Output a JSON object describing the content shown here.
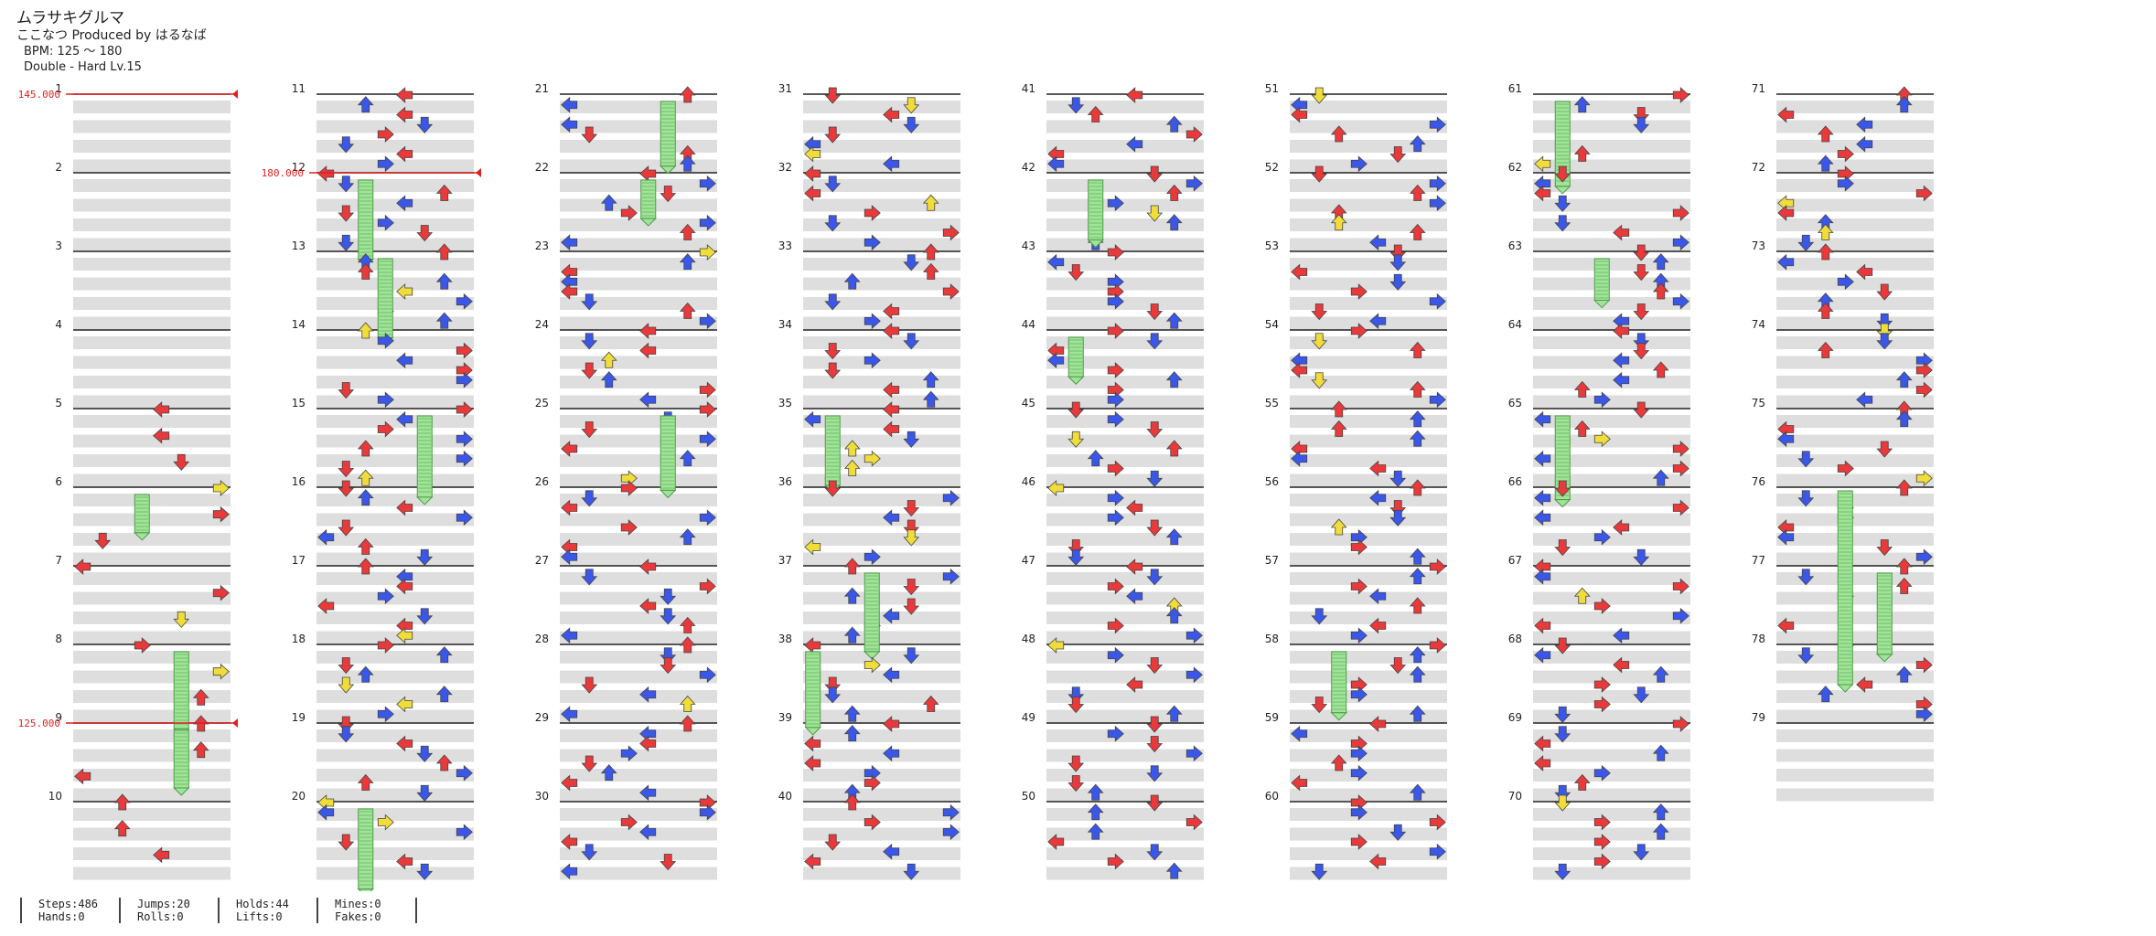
{
  "header": {
    "title": "ムラサキグルマ",
    "subtitle": "ここなつ Produced by はるなば",
    "bpm": "BPM: 125 ～ 180",
    "difficulty": "Double - Hard  Lv.15"
  },
  "measure_numbers": [
    "1",
    "2",
    "3",
    "4",
    "5",
    "6",
    "7",
    "8",
    "9",
    "10",
    "11",
    "12",
    "13",
    "14",
    "15",
    "16",
    "17",
    "18",
    "19",
    "20",
    "21",
    "22",
    "23",
    "24",
    "25",
    "26",
    "27",
    "28",
    "29",
    "30",
    "31",
    "32",
    "33",
    "34",
    "35",
    "36",
    "37",
    "38",
    "39",
    "40",
    "41",
    "42",
    "43",
    "44",
    "45",
    "46",
    "47",
    "48",
    "49",
    "50",
    "51",
    "52",
    "53",
    "54",
    "55",
    "56",
    "57",
    "58",
    "59",
    "60",
    "61",
    "62",
    "63",
    "64",
    "65",
    "66",
    "67",
    "68",
    "69",
    "70",
    "71",
    "72",
    "73",
    "74",
    "75",
    "76",
    "77",
    "78",
    "79"
  ],
  "bpm_changes": [
    {
      "measure": 1,
      "label": "145.000"
    },
    {
      "measure": 12,
      "label": "180.000"
    },
    {
      "measure": 9,
      "label": "125.000"
    }
  ],
  "stats": [
    {
      "top": "Steps:486",
      "bottom": "Hands:0"
    },
    {
      "top": "Jumps:20",
      "bottom": "Rolls:0"
    },
    {
      "top": "Holds:44",
      "bottom": "Lifts:0"
    },
    {
      "top": "Mines:0",
      "bottom": "Fakes:0"
    }
  ],
  "colors": {
    "quarter_arrow": "#e8393b",
    "eighth_arrow": "#3a57e8",
    "sixteenth_arrow": "#f0dc3a",
    "hold_body": "#a2e39a",
    "bpm_line": "#e02020",
    "band_shade": "#dedede"
  },
  "icons": [
    "arrow-left-icon",
    "arrow-down-icon",
    "arrow-up-icon",
    "arrow-right-icon",
    "hold-bar-icon"
  ]
}
